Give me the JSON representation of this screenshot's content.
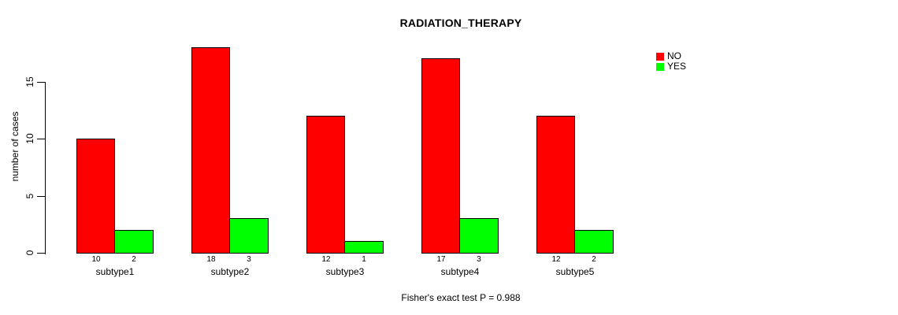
{
  "chart_data": {
    "type": "bar",
    "title": "RADIATION_THERAPY",
    "categories": [
      "subtype1",
      "subtype2",
      "subtype3",
      "subtype4",
      "subtype5"
    ],
    "series": [
      {
        "name": "NO",
        "color": "#ff0000",
        "values": [
          10,
          18,
          12,
          17,
          12
        ]
      },
      {
        "name": "YES",
        "color": "#00ff00",
        "values": [
          2,
          3,
          1,
          3,
          2
        ]
      }
    ],
    "xlabel": "",
    "ylabel": "number of cases",
    "yticks": [
      0,
      5,
      10,
      15
    ],
    "ylim": [
      0,
      18
    ],
    "grid": false,
    "bar_value_labels": true,
    "legend_position": "top-right",
    "axis_color": "#000000",
    "bar_border_color": "#000000",
    "footnote": "Fisher's exact test P = 0.988"
  }
}
